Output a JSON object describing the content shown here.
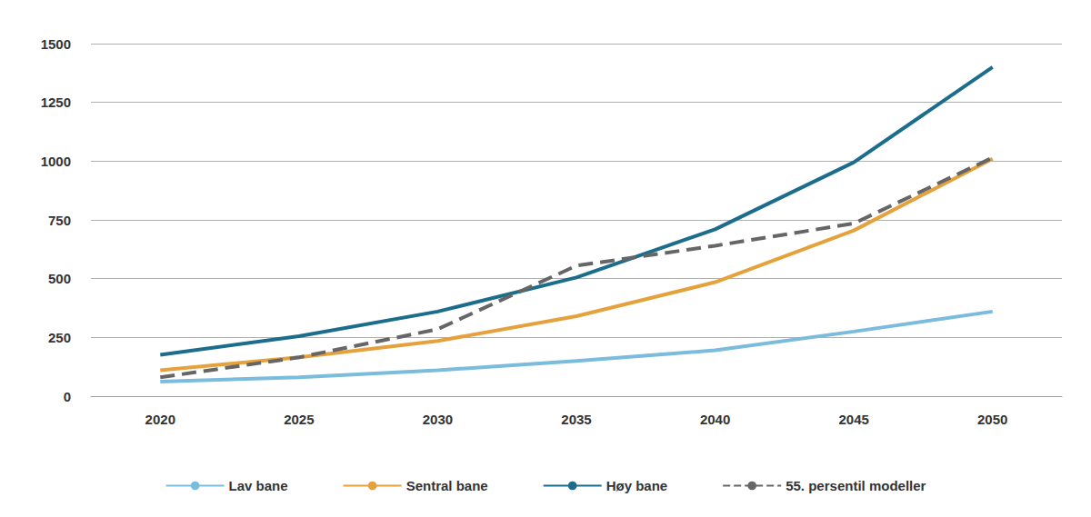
{
  "chart_data": {
    "type": "line",
    "categories": [
      "2020",
      "2025",
      "2030",
      "2035",
      "2040",
      "2045",
      "2050"
    ],
    "series": [
      {
        "name": "Lav bane",
        "color": "#7bbcdd",
        "line_style": "solid",
        "marker": "none",
        "values": [
          62,
          80,
          110,
          150,
          195,
          275,
          360
        ]
      },
      {
        "name": "Sentral bane",
        "color": "#e5a23c",
        "line_style": "solid",
        "marker": "none",
        "values": [
          110,
          165,
          235,
          340,
          485,
          705,
          1010
        ]
      },
      {
        "name": "Høy bane",
        "color": "#1c6d8b",
        "line_style": "solid",
        "marker": "none",
        "values": [
          176,
          255,
          360,
          505,
          710,
          995,
          1400
        ]
      },
      {
        "name": "55. persentil modeller",
        "color": "#666666",
        "line_style": "dashed",
        "marker": "none",
        "values": [
          80,
          165,
          285,
          555,
          640,
          735,
          1015
        ]
      }
    ],
    "ylim": [
      0,
      1500
    ],
    "yticks": [
      0,
      250,
      500,
      750,
      1000,
      1250,
      1500
    ],
    "grid": true,
    "legend": "bottom"
  }
}
